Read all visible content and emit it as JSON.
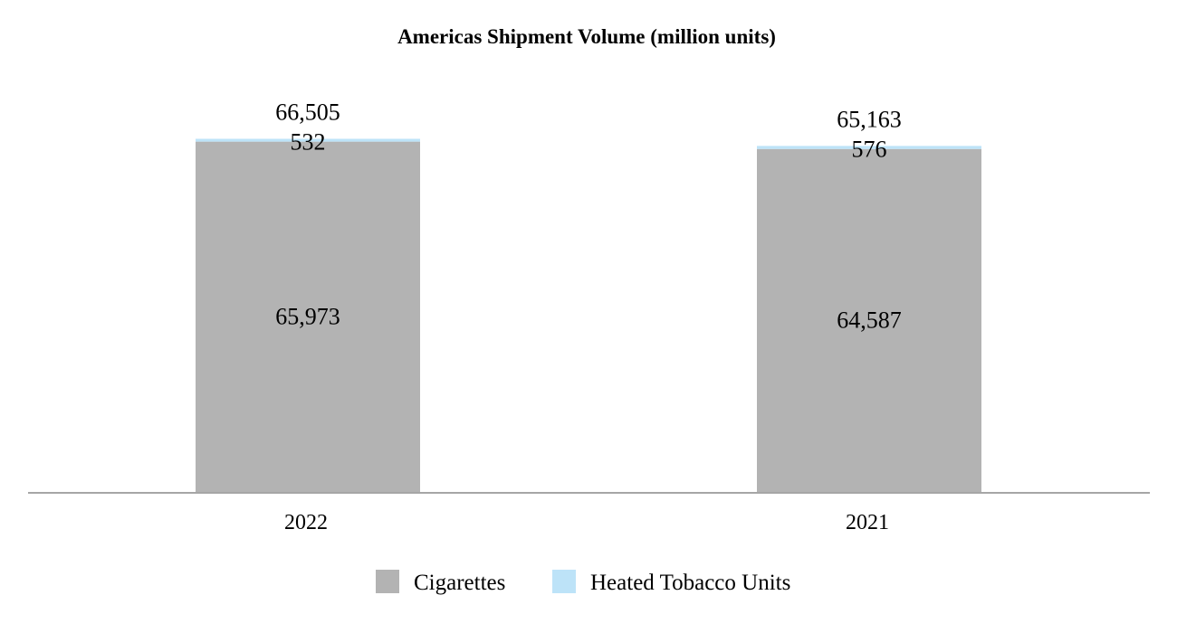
{
  "chart_data": {
    "type": "bar",
    "stacked": true,
    "title": "Americas Shipment Volume (million units)",
    "xlabel": "",
    "ylabel": "",
    "categories": [
      "2022",
      "2021"
    ],
    "series": [
      {
        "name": "Cigarettes",
        "values": [
          65973,
          64587
        ],
        "color": "#b3b3b3"
      },
      {
        "name": "Heated Tobacco Units",
        "values": [
          532,
          576
        ],
        "color": "#bde3f8"
      }
    ],
    "totals": [
      "66,505",
      "65,163"
    ],
    "value_labels": [
      [
        "65,973",
        "64,587"
      ],
      [
        "532",
        "576"
      ]
    ],
    "ylim": [
      0,
      78000
    ],
    "grid": false,
    "legend": "bottom-center"
  }
}
